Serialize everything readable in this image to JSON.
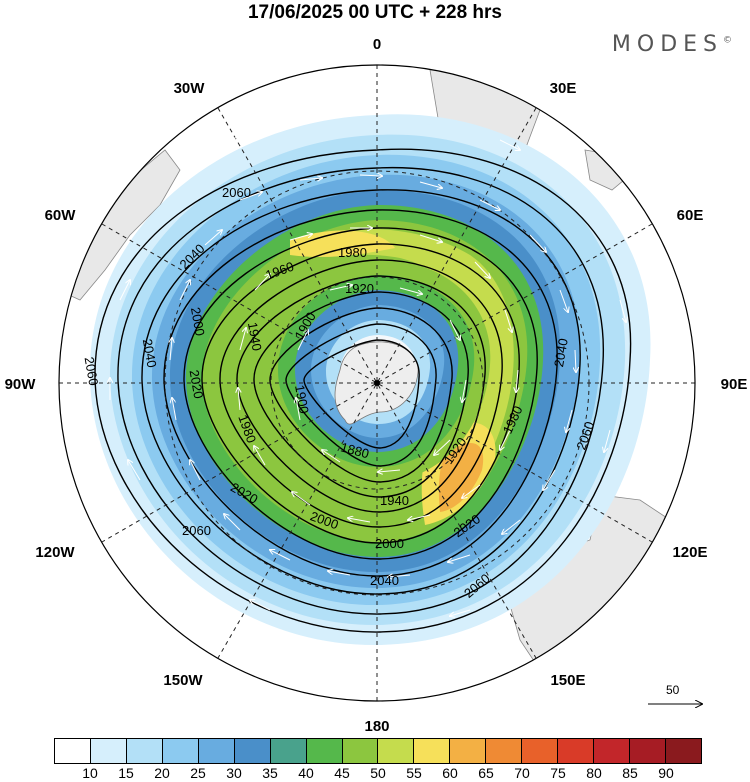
{
  "title": "17/06/2025  00 UTC  + 228 hrs",
  "brand": "MODES",
  "brand_mark": "©",
  "longitude_labels": {
    "lon_0": "0",
    "lon_30e": "30E",
    "lon_60e": "60E",
    "lon_90e": "90E",
    "lon_120e": "120E",
    "lon_150e": "150E",
    "lon_180": "180",
    "lon_150w": "150W",
    "lon_120w": "120W",
    "lon_90w": "90W",
    "lon_60w": "60W",
    "lon_30w": "30W"
  },
  "contour_labels": {
    "c1": "2060",
    "c2": "2040",
    "c3": "1980",
    "c4": "1960",
    "c5": "1920",
    "c6": "1900",
    "c7": "1940",
    "c8": "2000",
    "c9": "2020",
    "c10": "2060",
    "c11": "2040",
    "c12": "2020",
    "c13": "1980",
    "c14": "1900",
    "c15": "1880",
    "c16": "1920",
    "c17": "1980",
    "c18": "2040",
    "c19": "2060",
    "c20": "1940",
    "c21": "2000",
    "c22": "2020",
    "c23": "2040",
    "c24": "2060",
    "c25": "2060",
    "c26": "2020",
    "c27": "2060",
    "c28": "2000"
  },
  "reference_vector": "50",
  "colorbar": {
    "ticks": [
      "10",
      "15",
      "20",
      "25",
      "30",
      "35",
      "40",
      "45",
      "50",
      "55",
      "60",
      "65",
      "70",
      "75",
      "80",
      "85",
      "90"
    ],
    "colors": [
      "#ffffff",
      "#d6effc",
      "#b3e0f7",
      "#8ccaf0",
      "#68ace0",
      "#4a8fc9",
      "#49a28c",
      "#55b84b",
      "#8cc63f",
      "#c5dc4d",
      "#f6e05a",
      "#f3b044",
      "#ef8a34",
      "#e8612a",
      "#d93b28",
      "#c2262a",
      "#a61c24",
      "#8a1a1e"
    ]
  }
}
